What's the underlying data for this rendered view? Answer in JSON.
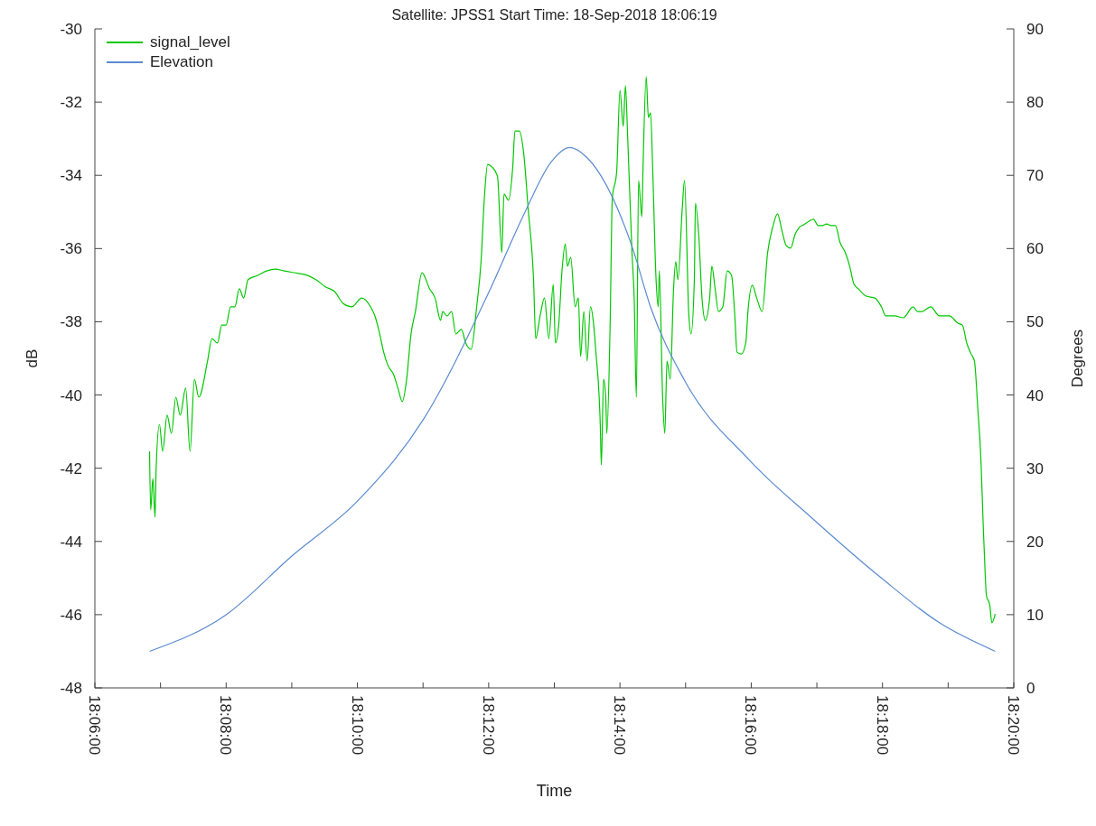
{
  "chart_data": {
    "type": "line",
    "title": "Satellite: JPSS1  Start Time: 18-Sep-2018 18:06:19",
    "xlabel": "Time",
    "ylabel": "dB",
    "y2label": "Degrees",
    "legend": "top left",
    "marker": "none",
    "line_style": "solid",
    "xlim": [
      "2018-09-18T18:06:00",
      "2018-09-18T18:20:00"
    ],
    "xticks": [
      {
        "value": "2018-09-18T18:06:00",
        "label": "18:06:00"
      },
      {
        "value": "2018-09-18T18:07:00",
        "label": null
      },
      {
        "value": "2018-09-18T18:08:00",
        "label": "18:08:00"
      },
      {
        "value": "2018-09-18T18:09:00",
        "label": null
      },
      {
        "value": "2018-09-18T18:10:00",
        "label": "18:10:00"
      },
      {
        "value": "2018-09-18T18:11:00",
        "label": null
      },
      {
        "value": "2018-09-18T18:12:00",
        "label": "18:12:00"
      },
      {
        "value": "2018-09-18T18:13:00",
        "label": null
      },
      {
        "value": "2018-09-18T18:14:00",
        "label": "18:14:00"
      },
      {
        "value": "2018-09-18T18:15:00",
        "label": null
      },
      {
        "value": "2018-09-18T18:16:00",
        "label": "18:16:00"
      },
      {
        "value": "2018-09-18T18:17:00",
        "label": null
      },
      {
        "value": "2018-09-18T18:18:00",
        "label": "18:18:00"
      },
      {
        "value": "2018-09-18T18:19:00",
        "label": null
      },
      {
        "value": "2018-09-18T18:20:00",
        "label": "18:20:00"
      }
    ],
    "ylim": [
      -48,
      -30
    ],
    "yticks": [
      -48,
      -46,
      -44,
      -42,
      -40,
      -38,
      -36,
      -34,
      -32,
      -30
    ],
    "y2lim": [
      0,
      90
    ],
    "y2ticks": [
      0,
      10,
      20,
      30,
      40,
      50,
      60,
      70,
      80,
      90
    ],
    "series": [
      {
        "name": "signal_level",
        "color": "#00c800",
        "x": [
          "2018-09-18T18:06:50",
          "2018-09-18T18:06:51",
          "2018-09-18T18:06:53",
          "2018-09-18T18:06:55",
          "2018-09-18T18:06:56",
          "2018-09-18T18:06:59",
          "2018-09-18T18:07:02",
          "2018-09-18T18:07:06",
          "2018-09-18T18:07:10",
          "2018-09-18T18:07:14",
          "2018-09-18T18:07:18",
          "2018-09-18T18:07:23",
          "2018-09-18T18:07:27",
          "2018-09-18T18:07:31",
          "2018-09-18T18:07:35",
          "2018-09-18T18:07:43",
          "2018-09-18T18:07:47",
          "2018-09-18T18:07:52",
          "2018-09-18T18:07:56",
          "2018-09-18T18:08:00",
          "2018-09-18T18:08:04",
          "2018-09-18T18:08:08",
          "2018-09-18T18:08:12",
          "2018-09-18T18:08:16",
          "2018-09-18T18:08:20",
          "2018-09-18T18:08:29",
          "2018-09-18T18:08:37",
          "2018-09-18T18:08:45",
          "2018-09-18T18:08:53",
          "2018-09-18T18:09:06",
          "2018-09-18T18:09:14",
          "2018-09-18T18:09:22",
          "2018-09-18T18:09:31",
          "2018-09-18T18:09:39",
          "2018-09-18T18:09:47",
          "2018-09-18T18:09:55",
          "2018-09-18T18:10:04",
          "2018-09-18T18:10:12",
          "2018-09-18T18:10:16",
          "2018-09-18T18:10:20",
          "2018-09-18T18:10:24",
          "2018-09-18T18:10:28",
          "2018-09-18T18:10:33",
          "2018-09-18T18:10:37",
          "2018-09-18T18:10:41",
          "2018-09-18T18:10:45",
          "2018-09-18T18:10:49",
          "2018-09-18T18:10:53",
          "2018-09-18T18:10:59",
          "2018-09-18T18:11:06",
          "2018-09-18T18:11:11",
          "2018-09-18T18:11:16",
          "2018-09-18T18:11:18",
          "2018-09-18T18:11:22",
          "2018-09-18T18:11:26",
          "2018-09-18T18:11:30",
          "2018-09-18T18:11:35",
          "2018-09-18T18:11:39",
          "2018-09-18T18:11:44",
          "2018-09-18T18:11:49",
          "2018-09-18T18:11:53",
          "2018-09-18T18:11:56",
          "2018-09-18T18:11:59",
          "2018-09-18T18:12:03",
          "2018-09-18T18:12:08",
          "2018-09-18T18:12:12",
          "2018-09-18T18:12:14",
          "2018-09-18T18:12:18",
          "2018-09-18T18:12:22",
          "2018-09-18T18:12:24",
          "2018-09-18T18:12:28",
          "2018-09-18T18:12:32",
          "2018-09-18T18:12:36",
          "2018-09-18T18:12:41",
          "2018-09-18T18:12:43",
          "2018-09-18T18:12:47",
          "2018-09-18T18:12:51",
          "2018-09-18T18:12:55",
          "2018-09-18T18:12:59",
          "2018-09-18T18:13:01",
          "2018-09-18T18:13:04",
          "2018-09-18T18:13:07",
          "2018-09-18T18:13:10",
          "2018-09-18T18:13:12",
          "2018-09-18T18:13:15",
          "2018-09-18T18:13:19",
          "2018-09-18T18:13:22",
          "2018-09-18T18:13:24",
          "2018-09-18T18:13:27",
          "2018-09-18T18:13:30",
          "2018-09-18T18:13:33",
          "2018-09-18T18:13:36",
          "2018-09-18T18:13:38",
          "2018-09-18T18:13:41",
          "2018-09-18T18:13:42",
          "2018-09-18T18:13:43",
          "2018-09-18T18:13:45",
          "2018-09-18T18:13:47",
          "2018-09-18T18:13:48",
          "2018-09-18T18:13:51",
          "2018-09-18T18:13:53",
          "2018-09-18T18:13:57",
          "2018-09-18T18:14:00",
          "2018-09-18T18:14:03",
          "2018-09-18T18:14:05",
          "2018-09-18T18:14:07",
          "2018-09-18T18:14:11",
          "2018-09-18T18:14:13",
          "2018-09-18T18:14:15",
          "2018-09-18T18:14:17",
          "2018-09-18T18:14:20",
          "2018-09-18T18:14:21",
          "2018-09-18T18:14:24",
          "2018-09-18T18:14:26",
          "2018-09-18T18:14:28",
          "2018-09-18T18:14:30",
          "2018-09-18T18:14:33",
          "2018-09-18T18:14:35",
          "2018-09-18T18:14:36",
          "2018-09-18T18:14:39",
          "2018-09-18T18:14:41",
          "2018-09-18T18:14:43",
          "2018-09-18T18:14:46",
          "2018-09-18T18:14:49",
          "2018-09-18T18:14:51",
          "2018-09-18T18:14:53",
          "2018-09-18T18:14:57",
          "2018-09-18T18:14:59",
          "2018-09-18T18:15:03",
          "2018-09-18T18:15:05",
          "2018-09-18T18:15:08",
          "2018-09-18T18:15:09",
          "2018-09-18T18:15:12",
          "2018-09-18T18:15:15",
          "2018-09-18T18:15:18",
          "2018-09-18T18:15:22",
          "2018-09-18T18:15:24",
          "2018-09-18T18:15:27",
          "2018-09-18T18:15:30",
          "2018-09-18T18:15:34",
          "2018-09-18T18:15:38",
          "2018-09-18T18:15:42",
          "2018-09-18T18:15:45",
          "2018-09-18T18:15:47",
          "2018-09-18T18:15:51",
          "2018-09-18T18:15:55",
          "2018-09-18T18:15:57",
          "2018-09-18T18:16:01",
          "2018-09-18T18:16:05",
          "2018-09-18T18:16:10",
          "2018-09-18T18:16:15",
          "2018-09-18T18:16:20",
          "2018-09-18T18:16:24",
          "2018-09-18T18:16:28",
          "2018-09-18T18:16:32",
          "2018-09-18T18:16:36",
          "2018-09-18T18:16:40",
          "2018-09-18T18:16:44",
          "2018-09-18T18:16:48",
          "2018-09-18T18:16:53",
          "2018-09-18T18:16:57",
          "2018-09-18T18:17:01",
          "2018-09-18T18:17:05",
          "2018-09-18T18:17:09",
          "2018-09-18T18:17:13",
          "2018-09-18T18:17:17",
          "2018-09-18T18:17:21",
          "2018-09-18T18:17:26",
          "2018-09-18T18:17:30",
          "2018-09-18T18:17:34",
          "2018-09-18T18:17:38",
          "2018-09-18T18:17:45",
          "2018-09-18T18:17:53",
          "2018-09-18T18:17:59",
          "2018-09-18T18:18:03",
          "2018-09-18T18:18:11",
          "2018-09-18T18:18:19",
          "2018-09-18T18:18:28",
          "2018-09-18T18:18:32",
          "2018-09-18T18:18:36",
          "2018-09-18T18:18:44",
          "2018-09-18T18:18:52",
          "2018-09-18T18:19:01",
          "2018-09-18T18:19:09",
          "2018-09-18T18:19:13",
          "2018-09-18T18:19:17",
          "2018-09-18T18:19:21",
          "2018-09-18T18:19:24",
          "2018-09-18T18:19:27",
          "2018-09-18T18:19:30",
          "2018-09-18T18:19:32",
          "2018-09-18T18:19:34",
          "2018-09-18T18:19:35",
          "2018-09-18T18:19:38",
          "2018-09-18T18:19:40",
          "2018-09-18T18:19:43"
        ],
        "values": [
          -41.54,
          -43.14,
          -42.28,
          -43.34,
          -42.03,
          -40.8,
          -41.54,
          -40.55,
          -41.05,
          -40.06,
          -40.55,
          -39.81,
          -41.54,
          -39.57,
          -40.06,
          -39.07,
          -38.46,
          -38.58,
          -38.09,
          -38.09,
          -37.59,
          -37.59,
          -37.1,
          -37.35,
          -36.85,
          -36.73,
          -36.61,
          -36.56,
          -36.61,
          -36.68,
          -36.73,
          -36.85,
          -37.05,
          -37.17,
          -37.5,
          -37.59,
          -37.35,
          -37.59,
          -37.84,
          -38.28,
          -38.83,
          -39.2,
          -39.44,
          -39.81,
          -40.18,
          -39.57,
          -38.33,
          -37.72,
          -36.66,
          -37.1,
          -37.35,
          -37.96,
          -37.72,
          -37.84,
          -37.72,
          -38.33,
          -38.21,
          -38.58,
          -38.75,
          -37.59,
          -36.36,
          -34.64,
          -33.7,
          -33.77,
          -34.02,
          -36.11,
          -34.51,
          -34.68,
          -33.77,
          -32.79,
          -32.79,
          -33.4,
          -34.88,
          -36.85,
          -38.46,
          -37.84,
          -37.35,
          -38.46,
          -36.98,
          -38.58,
          -38.09,
          -36.61,
          -35.87,
          -36.48,
          -36.24,
          -37.59,
          -37.35,
          -38.95,
          -37.72,
          -39.07,
          -37.59,
          -38.09,
          -38.83,
          -40.06,
          -40.8,
          -41.91,
          -39.57,
          -40.06,
          -41.05,
          -38.09,
          -34.64,
          -33.9,
          -31.68,
          -32.66,
          -31.55,
          -32.91,
          -36.11,
          -37.35,
          -40.06,
          -34.14,
          -35.13,
          -33.9,
          -31.31,
          -32.42,
          -32.29,
          -33.9,
          -36.85,
          -37.59,
          -36.61,
          -40.06,
          -41.05,
          -39.07,
          -39.57,
          -37.1,
          -36.36,
          -36.85,
          -34.88,
          -34.14,
          -37.84,
          -38.33,
          -36.85,
          -34.76,
          -35.62,
          -37.35,
          -37.96,
          -37.35,
          -36.48,
          -37.1,
          -37.72,
          -37.59,
          -36.61,
          -36.73,
          -37.84,
          -38.83,
          -38.88,
          -38.58,
          -37.72,
          -37.0,
          -37.35,
          -37.72,
          -36.11,
          -35.37,
          -35.05,
          -35.5,
          -35.92,
          -35.99,
          -35.62,
          -35.42,
          -35.35,
          -35.25,
          -35.2,
          -35.37,
          -35.37,
          -35.33,
          -35.37,
          -35.37,
          -35.82,
          -36.11,
          -36.48,
          -36.98,
          -37.1,
          -37.3,
          -37.35,
          -37.59,
          -37.84,
          -37.84,
          -37.89,
          -37.59,
          -37.72,
          -37.72,
          -37.59,
          -37.84,
          -37.84,
          -38.04,
          -38.09,
          -38.58,
          -38.88,
          -39.07,
          -40.31,
          -41.79,
          -43.51,
          -44.99,
          -45.48,
          -45.73,
          -46.22,
          -45.98
        ]
      },
      {
        "name": "Elevation",
        "color": "#5b8bd0",
        "axis": "y2",
        "x": [
          "2018-09-18T18:06:50",
          "2018-09-18T18:08:00",
          "2018-09-18T18:09:00",
          "2018-09-18T18:10:00",
          "2018-09-18T18:11:00",
          "2018-09-18T18:12:00",
          "2018-09-18T18:12:32",
          "2018-09-18T18:12:57",
          "2018-09-18T18:13:14",
          "2018-09-18T18:13:30",
          "2018-09-18T18:14:11",
          "2018-09-18T18:14:28",
          "2018-09-18T18:14:59",
          "2018-09-18T18:15:59",
          "2018-09-18T18:16:57",
          "2018-09-18T18:17:59",
          "2018-09-18T18:18:52",
          "2018-09-18T18:19:43"
        ],
        "values": [
          5,
          10,
          18,
          25.5,
          36.6,
          54,
          64.6,
          71.8,
          73.8,
          72.4,
          60.3,
          52,
          42,
          31,
          23,
          15,
          8.9,
          5
        ]
      }
    ]
  }
}
